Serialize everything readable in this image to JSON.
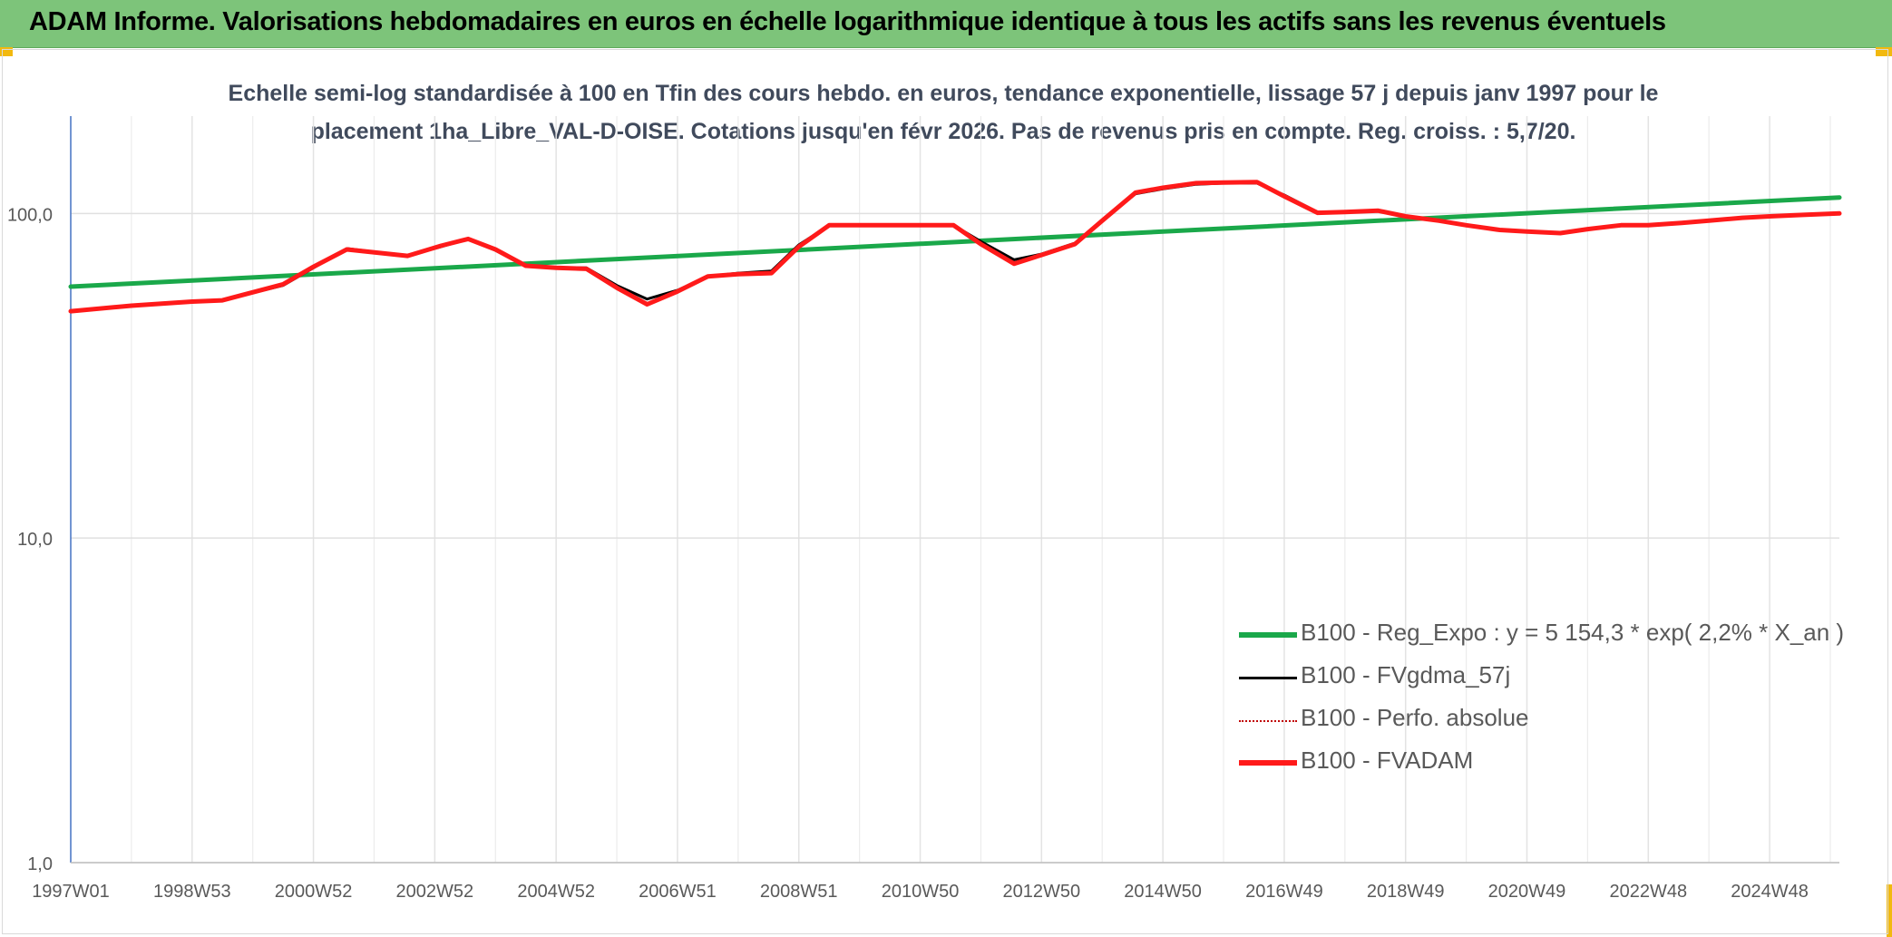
{
  "header": {
    "title": "ADAM Informe. Valorisations hebdomadaires en euros en échelle logarithmique identique à tous les actifs sans les revenus éventuels"
  },
  "chart_data": {
    "type": "line",
    "subtitle_line1": "Echelle semi-log standardisée à 100 en Tfin des cours hebdo. en euros, tendance exponentielle, lissage 57 j depuis janv 1997 pour le",
    "subtitle_line2": "placement 1ha_Libre_VAL-D-OISE. Cotations jusqu'en févr 2026. Pas de revenus pris en compte. Reg. croiss. : 5,7/20.",
    "y_scale": "log",
    "ylim": [
      1,
      100
    ],
    "y_ticks": [
      {
        "value": 1,
        "label": "1,0"
      },
      {
        "value": 10,
        "label": "10,0"
      },
      {
        "value": 100,
        "label": "100,0"
      }
    ],
    "x_range": [
      1997.0,
      2026.15
    ],
    "x_ticks": [
      {
        "x": 1997.0,
        "label": "1997W01"
      },
      {
        "x": 1999.0,
        "label": "1998W53"
      },
      {
        "x": 2001.0,
        "label": "2000W52"
      },
      {
        "x": 2003.0,
        "label": "2002W52"
      },
      {
        "x": 2005.0,
        "label": "2004W52"
      },
      {
        "x": 2007.0,
        "label": "2006W51"
      },
      {
        "x": 2009.0,
        "label": "2008W51"
      },
      {
        "x": 2011.0,
        "label": "2010W50"
      },
      {
        "x": 2013.0,
        "label": "2012W50"
      },
      {
        "x": 2015.0,
        "label": "2014W50"
      },
      {
        "x": 2017.0,
        "label": "2016W49"
      },
      {
        "x": 2019.0,
        "label": "2018W49"
      },
      {
        "x": 2021.0,
        "label": "2020W49"
      },
      {
        "x": 2023.0,
        "label": "2022W48"
      },
      {
        "x": 2025.0,
        "label": "2024W48"
      }
    ],
    "grid": true,
    "legend_position": "bottom-right",
    "series": [
      {
        "name": "B100 - Reg_Expo : y = 5 154,3 * exp( 2,2% *  X_an )",
        "color": "#1aa84a",
        "style": "solid-thick",
        "points": [
          [
            1997.0,
            59.5
          ],
          [
            2026.15,
            112.0
          ]
        ]
      },
      {
        "name": "B100 - FVgdma_57j",
        "color": "#000000",
        "style": "solid-thin",
        "points": [
          [
            1997.0,
            50
          ],
          [
            1998.0,
            52
          ],
          [
            1999.0,
            53.5
          ],
          [
            1999.5,
            54
          ],
          [
            2000.5,
            60
          ],
          [
            2001.0,
            68
          ],
          [
            2001.55,
            78
          ],
          [
            2002.55,
            74
          ],
          [
            2003.1,
            79
          ],
          [
            2003.55,
            83.5
          ],
          [
            2004.0,
            77
          ],
          [
            2004.5,
            69
          ],
          [
            2005.0,
            68
          ],
          [
            2005.5,
            68
          ],
          [
            2006.0,
            60
          ],
          [
            2006.5,
            54.5
          ],
          [
            2007.0,
            58
          ],
          [
            2007.5,
            64
          ],
          [
            2008.0,
            65.5
          ],
          [
            2008.55,
            66.5
          ],
          [
            2009.0,
            80
          ],
          [
            2009.5,
            92
          ],
          [
            2010.0,
            92
          ],
          [
            2011.0,
            92
          ],
          [
            2011.55,
            92
          ],
          [
            2012.0,
            82
          ],
          [
            2012.55,
            72
          ],
          [
            2013.0,
            75
          ],
          [
            2013.55,
            81
          ],
          [
            2014.0,
            95
          ],
          [
            2014.55,
            115
          ],
          [
            2015.0,
            119
          ],
          [
            2015.55,
            123
          ],
          [
            2016.0,
            124
          ],
          [
            2016.55,
            124
          ],
          [
            2017.0,
            114
          ],
          [
            2017.55,
            101
          ],
          [
            2018.0,
            101
          ],
          [
            2018.55,
            102
          ],
          [
            2019.0,
            98
          ],
          [
            2019.55,
            95
          ],
          [
            2020.0,
            92
          ],
          [
            2020.55,
            89
          ],
          [
            2021.0,
            88
          ],
          [
            2021.55,
            87
          ],
          [
            2022.0,
            89.5
          ],
          [
            2022.55,
            92
          ],
          [
            2023.0,
            92
          ],
          [
            2023.55,
            93.5
          ],
          [
            2024.0,
            95
          ],
          [
            2024.55,
            97
          ],
          [
            2025.0,
            98
          ],
          [
            2025.55,
            99
          ],
          [
            2026.15,
            100
          ]
        ]
      },
      {
        "name": "B100 - Perfo. absolue",
        "color": "#c00000",
        "style": "dotted",
        "points": []
      },
      {
        "name": "B100 - FVADAM",
        "color": "#ff1a1a",
        "style": "solid-thick",
        "points": [
          [
            1997.0,
            50
          ],
          [
            1998.0,
            52
          ],
          [
            1999.0,
            53.5
          ],
          [
            1999.5,
            54
          ],
          [
            2000.5,
            60.5
          ],
          [
            2001.0,
            68.5
          ],
          [
            2001.55,
            77.5
          ],
          [
            2002.55,
            74
          ],
          [
            2003.1,
            79.5
          ],
          [
            2003.55,
            83.5
          ],
          [
            2004.0,
            77.5
          ],
          [
            2004.5,
            69
          ],
          [
            2005.0,
            68
          ],
          [
            2005.5,
            67.5
          ],
          [
            2006.0,
            59
          ],
          [
            2006.5,
            52.5
          ],
          [
            2007.0,
            57.5
          ],
          [
            2007.5,
            64
          ],
          [
            2008.0,
            65
          ],
          [
            2008.55,
            65.5
          ],
          [
            2009.0,
            79
          ],
          [
            2009.5,
            92
          ],
          [
            2010.0,
            92
          ],
          [
            2011.0,
            92
          ],
          [
            2011.55,
            92
          ],
          [
            2012.0,
            80.5
          ],
          [
            2012.55,
            70
          ],
          [
            2013.0,
            74.5
          ],
          [
            2013.55,
            80.5
          ],
          [
            2014.0,
            95
          ],
          [
            2014.55,
            116
          ],
          [
            2015.0,
            120
          ],
          [
            2015.55,
            124
          ],
          [
            2016.0,
            124.5
          ],
          [
            2016.55,
            125
          ],
          [
            2017.0,
            113
          ],
          [
            2017.55,
            100.5
          ],
          [
            2018.0,
            101
          ],
          [
            2018.55,
            102
          ],
          [
            2019.0,
            98
          ],
          [
            2019.55,
            95
          ],
          [
            2020.0,
            92
          ],
          [
            2020.55,
            89
          ],
          [
            2021.0,
            88
          ],
          [
            2021.55,
            87
          ],
          [
            2022.0,
            89.5
          ],
          [
            2022.55,
            92
          ],
          [
            2023.0,
            92
          ],
          [
            2023.55,
            93.5
          ],
          [
            2024.0,
            95
          ],
          [
            2024.55,
            97
          ],
          [
            2025.0,
            98
          ],
          [
            2025.55,
            99
          ],
          [
            2026.15,
            100
          ]
        ]
      }
    ]
  }
}
